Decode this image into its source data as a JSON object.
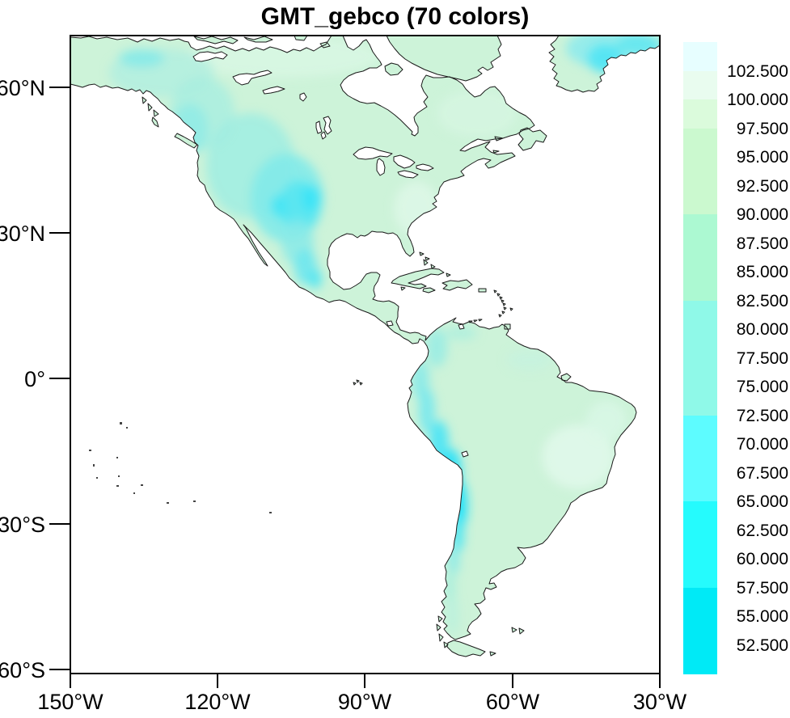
{
  "title": "GMT_gebco (70 colors)",
  "axes": {
    "y_ticks": [
      "60°N",
      "30°N",
      "0°",
      "30°S",
      "60°S"
    ],
    "x_ticks": [
      "150°W",
      "120°W",
      "90°W",
      "60°W",
      "30°W"
    ]
  },
  "colorbar": {
    "labels": [
      "102.500",
      "100.000",
      "97.500",
      "95.000",
      "92.500",
      "90.000",
      "87.500",
      "85.000",
      "82.500",
      "80.000",
      "77.500",
      "75.000",
      "72.500",
      "70.000",
      "67.500",
      "65.000",
      "62.500",
      "60.000",
      "57.500",
      "55.000",
      "52.500"
    ],
    "colors": [
      "#e7feff",
      "#e9fcef",
      "#dbfbdc",
      "#cbf9cf",
      "#cbf9cf",
      "#cbf9cf",
      "#acf9d2",
      "#acf9d2",
      "#acf9d2",
      "#8ff9e8",
      "#8ff9e8",
      "#8ff9e8",
      "#8ff9e8",
      "#5dfcff",
      "#5dfcff",
      "#5dfcff",
      "#25fbfd",
      "#25fbfd",
      "#25fbfd",
      "#00eaf6",
      "#00eaf6",
      "#00eaf6"
    ]
  },
  "map": {
    "ocean_color": "#ffffff",
    "land_color": "#cdf3d9",
    "coastline_color": "#1a1a1a",
    "highland_color": "#2be2f8"
  },
  "chart_data": {
    "type": "heatmap",
    "title": "GMT_gebco (70 colors)",
    "colormap_name": "GMT_gebco",
    "n_colors": 70,
    "description": "Topographic raster of North and South America rendered with the GMT_gebco color table; land shaded pale green with cyan highlands (Rockies, Mexican plateau, Andes, Greenland); ocean left white",
    "region": {
      "lon_min": -150,
      "lon_max": -30,
      "lat_min": -61,
      "lat_max": 71
    },
    "x_tick_labels": [
      "150°W",
      "120°W",
      "90°W",
      "60°W",
      "30°W"
    ],
    "y_tick_labels": [
      "60°N",
      "30°N",
      "0°",
      "30°S",
      "60°S"
    ],
    "colorbar_levels": [
      52.5,
      55.0,
      57.5,
      60.0,
      62.5,
      65.0,
      67.5,
      70.0,
      72.5,
      75.0,
      77.5,
      80.0,
      82.5,
      85.0,
      87.5,
      90.0,
      92.5,
      95.0,
      97.5,
      100.0,
      102.5
    ],
    "colorbar_colors_top_to_bottom": [
      "#e7feff",
      "#e9fcef",
      "#dbfbdc",
      "#cbf9cf",
      "#cbf9cf",
      "#cbf9cf",
      "#acf9d2",
      "#acf9d2",
      "#acf9d2",
      "#8ff9e8",
      "#8ff9e8",
      "#8ff9e8",
      "#8ff9e8",
      "#5dfcff",
      "#5dfcff",
      "#5dfcff",
      "#25fbfd",
      "#25fbfd",
      "#25fbfd",
      "#00eaf6",
      "#00eaf6",
      "#00eaf6"
    ],
    "legend_position": "right",
    "grid": false
  }
}
